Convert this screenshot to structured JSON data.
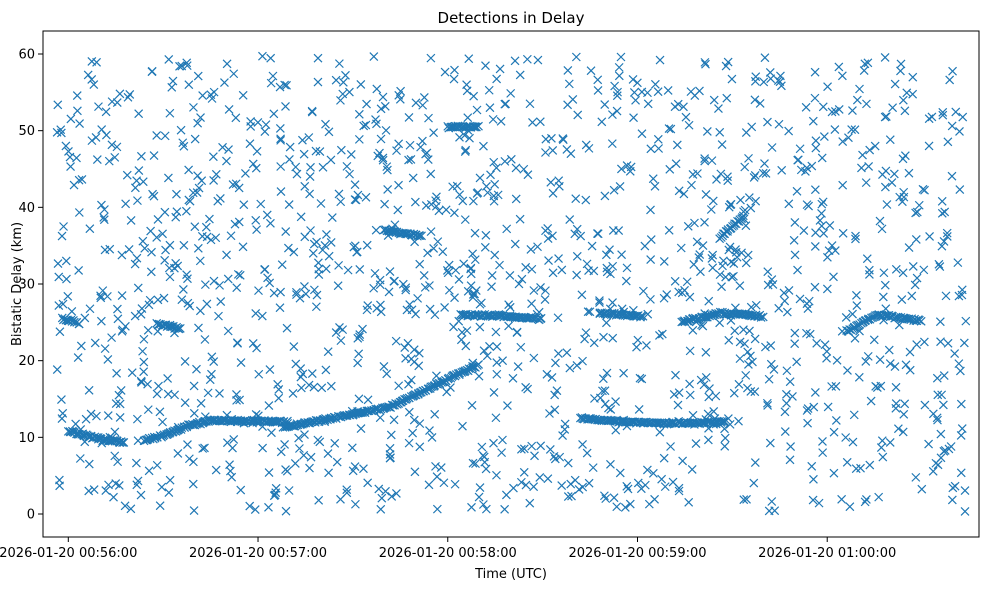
{
  "chart_data": {
    "type": "scatter",
    "title": "Detections in Delay",
    "xlabel": "Time (UTC)",
    "ylabel": "Bistatic Delay (km)",
    "x_ticks": [
      "2026-01-20 00:56:00",
      "2026-01-20 00:57:00",
      "2026-01-20 00:58:00",
      "2026-01-20 00:59:00",
      "2026-01-20 01:00:00"
    ],
    "y_ticks": [
      "0",
      "10",
      "20",
      "30",
      "40",
      "50",
      "60"
    ],
    "xlim": [
      "2026-01-20 00:55:52",
      "2026-01-20 01:00:48"
    ],
    "ylim": [
      -3,
      63
    ],
    "marker": "x",
    "color": "#1f77b4",
    "grid": false,
    "series": [
      {
        "tracks": [
          {
            "points": [
              [
                "2026-01-20 00:56:00",
                10.8
              ],
              [
                "2026-01-20 00:56:10",
                9.8
              ],
              [
                "2026-01-20 00:56:18",
                9.3
              ]
            ]
          },
          {
            "points": [
              [
                "2026-01-20 00:56:24",
                9.6
              ],
              [
                "2026-01-20 00:56:30",
                10.2
              ],
              [
                "2026-01-20 00:56:38",
                11.5
              ],
              [
                "2026-01-20 00:56:45",
                12.2
              ],
              [
                "2026-01-20 00:57:10",
                12.0
              ]
            ]
          },
          {
            "points": [
              [
                "2026-01-20 00:57:08",
                11.3
              ],
              [
                "2026-01-20 00:57:24",
                12.5
              ],
              [
                "2026-01-20 00:57:42",
                14.0
              ],
              [
                "2026-01-20 00:57:58",
                17.2
              ],
              [
                "2026-01-20 00:58:10",
                19.5
              ]
            ]
          },
          {
            "points": [
              [
                "2026-01-20 00:58:42",
                12.5
              ],
              [
                "2026-01-20 00:58:56",
                12.0
              ],
              [
                "2026-01-20 00:59:10",
                11.8
              ],
              [
                "2026-01-20 00:59:28",
                12.0
              ]
            ]
          },
          {
            "points": [
              [
                "2026-01-20 00:55:58",
                25.5
              ],
              [
                "2026-01-20 00:56:04",
                24.8
              ]
            ]
          },
          {
            "points": [
              [
                "2026-01-20 00:56:28",
                24.8
              ],
              [
                "2026-01-20 00:56:36",
                24.2
              ]
            ]
          },
          {
            "points": [
              [
                "2026-01-20 00:58:04",
                26.0
              ],
              [
                "2026-01-20 00:58:18",
                25.8
              ],
              [
                "2026-01-20 00:58:30",
                25.5
              ]
            ]
          },
          {
            "points": [
              [
                "2026-01-20 00:58:48",
                26.2
              ],
              [
                "2026-01-20 00:59:02",
                25.8
              ]
            ]
          },
          {
            "points": [
              [
                "2026-01-20 00:59:14",
                25.0
              ],
              [
                "2026-01-20 00:59:26",
                26.2
              ],
              [
                "2026-01-20 00:59:40",
                25.8
              ]
            ]
          },
          {
            "points": [
              [
                "2026-01-20 01:00:06",
                23.8
              ],
              [
                "2026-01-20 01:00:16",
                26.0
              ],
              [
                "2026-01-20 01:00:30",
                25.2
              ]
            ]
          },
          {
            "points": [
              [
                "2026-01-20 00:57:40",
                37.0
              ],
              [
                "2026-01-20 00:57:52",
                36.2
              ]
            ]
          },
          {
            "points": [
              [
                "2026-01-20 00:59:26",
                36.0
              ],
              [
                "2026-01-20 00:59:34",
                39.0
              ]
            ]
          },
          {
            "points": [
              [
                "2026-01-20 00:58:00",
                50.5
              ],
              [
                "2026-01-20 00:58:10",
                50.5
              ]
            ]
          }
        ]
      }
    ]
  }
}
